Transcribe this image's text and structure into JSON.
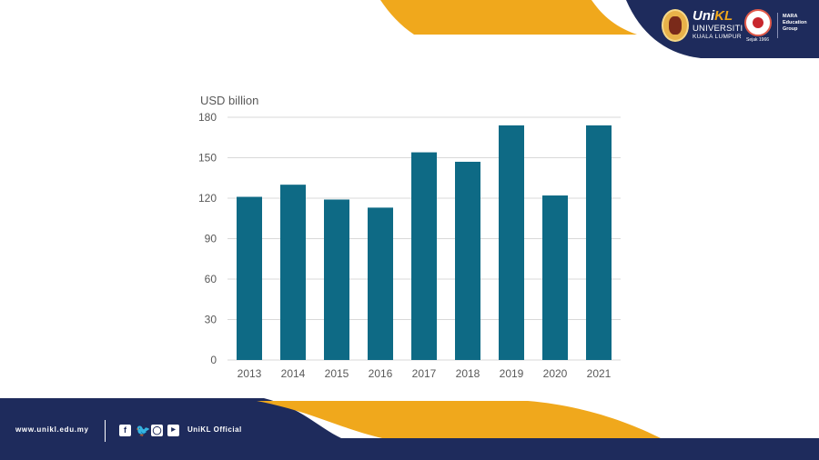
{
  "branding": {
    "unikl_main": "Uni",
    "unikl_kl": "KL",
    "unikl_line1": "UNIVERSITI",
    "unikl_line2": "KUALA LUMPUR",
    "mara_line1": "MARA",
    "mara_line2": "Education",
    "mara_line3": "Group",
    "mara_script": "Sejak 1966"
  },
  "footer": {
    "url": "www.unikl.edu.my",
    "official": "UniKL Official",
    "social_icons": [
      "facebook-icon",
      "twitter-icon",
      "instagram-icon",
      "youtube-icon"
    ]
  },
  "colors": {
    "navy": "#1e2b5c",
    "gold": "#f0a81c",
    "bar": "#0e6a85",
    "grid": "#d9d9d9",
    "text": "#595959"
  },
  "chart_data": {
    "type": "bar",
    "title": "",
    "unit_label": "USD billion",
    "xlabel": "",
    "ylabel": "USD billion",
    "categories": [
      "2013",
      "2014",
      "2015",
      "2016",
      "2017",
      "2018",
      "2019",
      "2020",
      "2021"
    ],
    "values": [
      121,
      130,
      119,
      113,
      154,
      147,
      174,
      122,
      174
    ],
    "ylim": [
      0,
      180
    ],
    "yticks": [
      0,
      30,
      60,
      90,
      120,
      150,
      180
    ],
    "grid": true,
    "legend": "none"
  }
}
